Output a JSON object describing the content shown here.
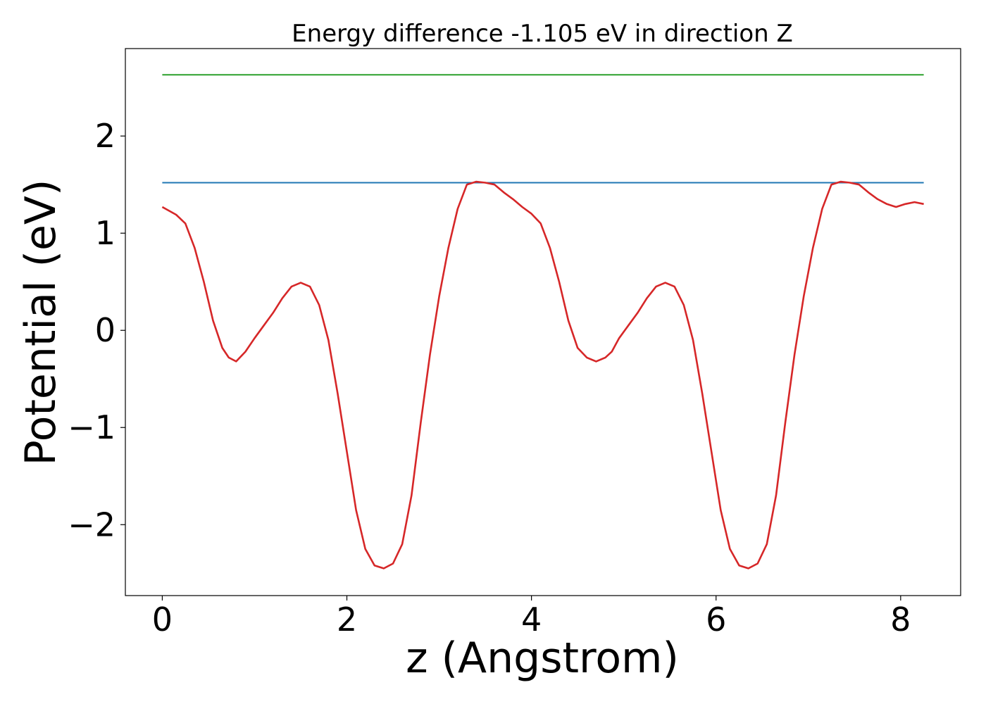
{
  "chart_data": {
    "type": "line",
    "title": "Energy difference -1.105 eV in direction Z",
    "xlabel": "z (Angstrom)",
    "ylabel": "Potential (eV)",
    "xlim": [
      -0.4,
      8.65
    ],
    "ylim": [
      -2.73,
      2.9
    ],
    "xticks": [
      0,
      2,
      4,
      6,
      8
    ],
    "xtick_labels": [
      "0",
      "2",
      "4",
      "6",
      "8"
    ],
    "yticks": [
      -2,
      -1,
      0,
      1,
      2
    ],
    "ytick_labels": [
      "−2",
      "−1",
      "0",
      "1",
      "2"
    ],
    "grid": false,
    "series": [
      {
        "color": "#2ca02c",
        "x": [
          0,
          8.25
        ],
        "y": [
          2.63,
          2.63
        ]
      },
      {
        "color": "#1f77b4",
        "x": [
          0,
          8.25
        ],
        "y": [
          1.52,
          1.52
        ]
      },
      {
        "color": "#d62728",
        "x": [
          0.0,
          0.15,
          0.25,
          0.35,
          0.45,
          0.55,
          0.65,
          0.72,
          0.8,
          0.9,
          1.0,
          1.1,
          1.2,
          1.3,
          1.4,
          1.5,
          1.6,
          1.7,
          1.8,
          1.9,
          2.0,
          2.1,
          2.2,
          2.3,
          2.4,
          2.5,
          2.6,
          2.7,
          2.8,
          2.9,
          3.0,
          3.1,
          3.2,
          3.3,
          3.4,
          3.5,
          3.6,
          3.7,
          3.8,
          3.9,
          4.0,
          4.1,
          4.2,
          4.3,
          4.4,
          4.5,
          4.6,
          4.7,
          4.8,
          4.87,
          4.95,
          5.05,
          5.15,
          5.25,
          5.35,
          5.45,
          5.55,
          5.65,
          5.75,
          5.85,
          5.95,
          6.05,
          6.15,
          6.25,
          6.35,
          6.45,
          6.55,
          6.65,
          6.75,
          6.85,
          6.95,
          7.05,
          7.15,
          7.25,
          7.35,
          7.45,
          7.55,
          7.65,
          7.75,
          7.85,
          7.95,
          8.05,
          8.15,
          8.25
        ],
        "y": [
          1.27,
          1.19,
          1.1,
          0.85,
          0.5,
          0.1,
          -0.18,
          -0.28,
          -0.32,
          -0.22,
          -0.08,
          0.05,
          0.18,
          0.33,
          0.45,
          0.49,
          0.45,
          0.26,
          -0.1,
          -0.65,
          -1.25,
          -1.85,
          -2.25,
          -2.42,
          -2.45,
          -2.4,
          -2.2,
          -1.7,
          -0.95,
          -0.25,
          0.35,
          0.85,
          1.25,
          1.5,
          1.53,
          1.52,
          1.5,
          1.42,
          1.35,
          1.27,
          1.2,
          1.1,
          0.85,
          0.5,
          0.1,
          -0.18,
          -0.28,
          -0.32,
          -0.28,
          -0.22,
          -0.08,
          0.05,
          0.18,
          0.33,
          0.45,
          0.49,
          0.45,
          0.26,
          -0.1,
          -0.65,
          -1.25,
          -1.85,
          -2.25,
          -2.42,
          -2.45,
          -2.4,
          -2.2,
          -1.7,
          -0.95,
          -0.25,
          0.35,
          0.85,
          1.25,
          1.5,
          1.53,
          1.52,
          1.5,
          1.42,
          1.35,
          1.3,
          1.27,
          1.3,
          1.32,
          1.3
        ]
      }
    ]
  }
}
